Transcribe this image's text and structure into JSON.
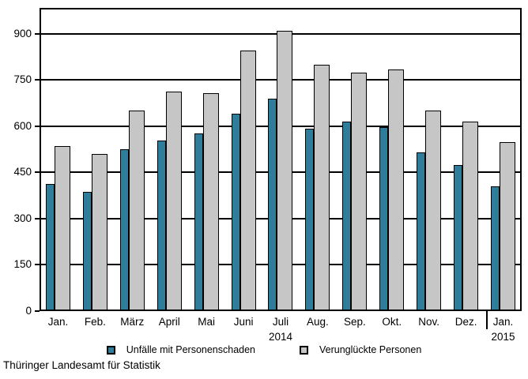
{
  "chart_data": {
    "type": "bar",
    "title": "",
    "xlabel": "",
    "ylabel": "",
    "categories": [
      "Jan.",
      "Feb.",
      "März",
      "April",
      "Mai",
      "Juni",
      "Juli",
      "Aug.",
      "Sep.",
      "Okt.",
      "Nov.",
      "Dez.",
      "Jan."
    ],
    "year_labels": [
      {
        "index": 6,
        "label": "2014"
      },
      {
        "index": 12,
        "label": "2015"
      }
    ],
    "series": [
      {
        "name": "Unfälle mit Personenschaden",
        "color": "#2d7d9b",
        "values": [
          412,
          386,
          525,
          553,
          577,
          641,
          690,
          593,
          616,
          597,
          514,
          474,
          405
        ]
      },
      {
        "name": "Verunglückte Personen",
        "color": "#c6c6c6",
        "values": [
          535,
          509,
          651,
          712,
          708,
          846,
          910,
          800,
          774,
          785,
          651,
          616,
          548
        ]
      }
    ],
    "yticks": [
      0,
      150,
      300,
      450,
      600,
      750,
      900
    ],
    "ylim": [
      0,
      984
    ],
    "grid": "horizontal",
    "legend_position": "bottom"
  },
  "footer": {
    "source": "Thüringer Landesamt für Statistik"
  }
}
